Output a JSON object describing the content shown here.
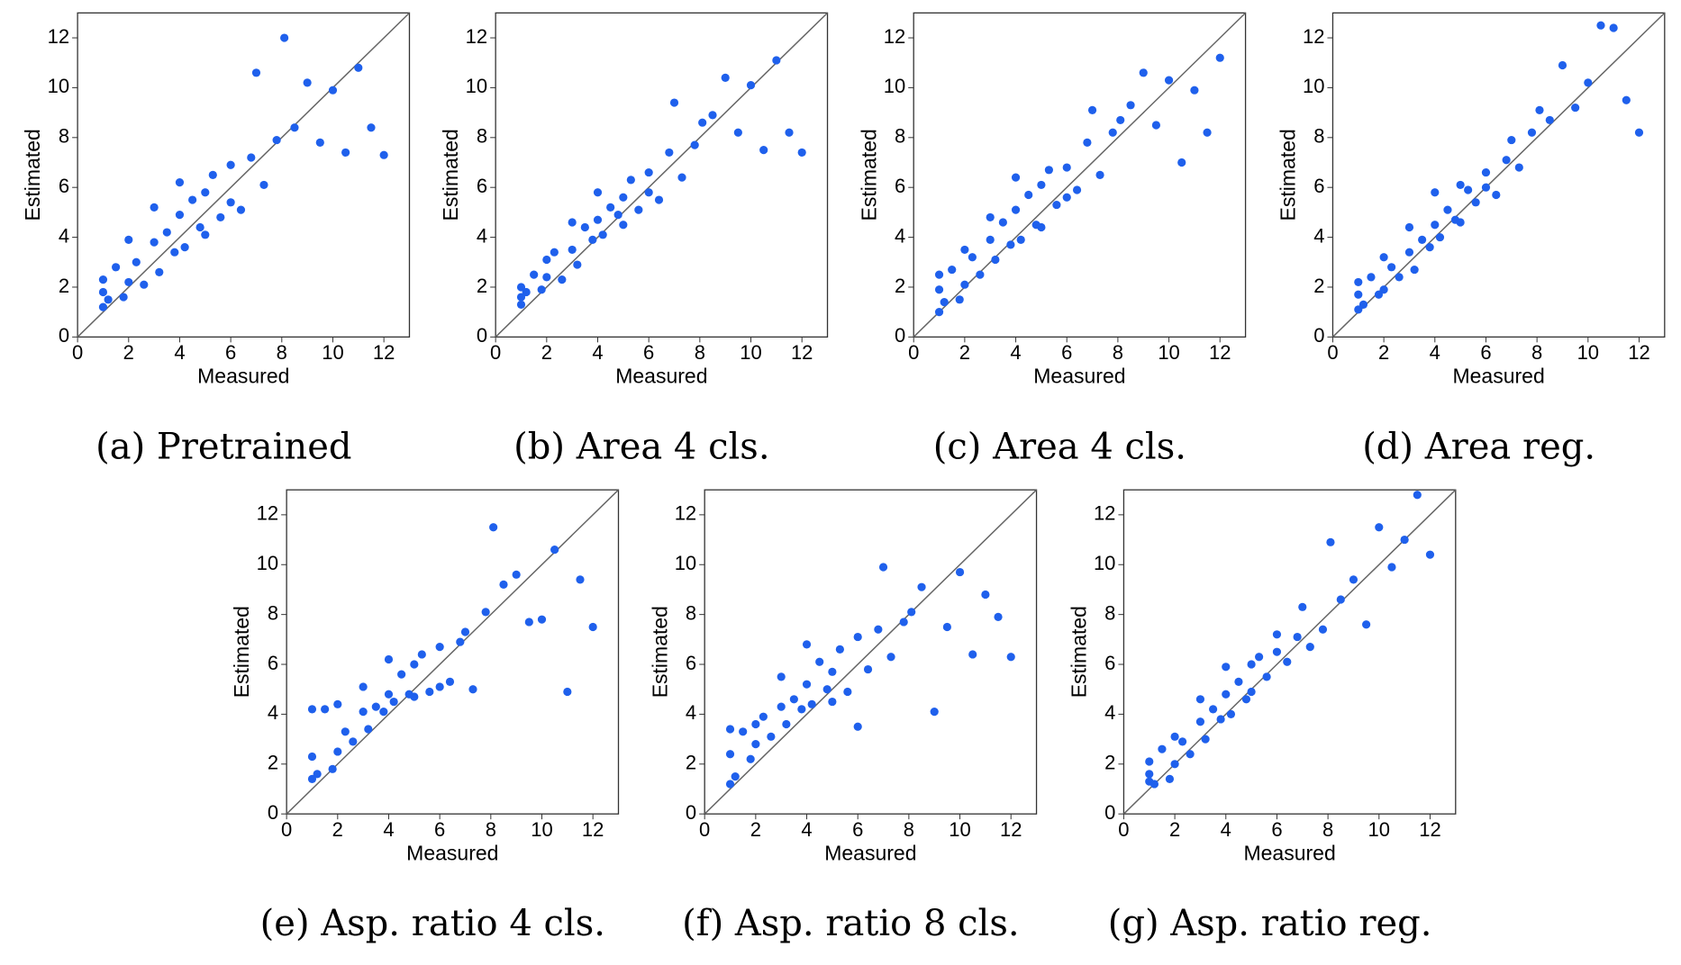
{
  "chart_data": [
    {
      "type": "scatter",
      "caption": "(a) Pretrained",
      "xlabel": "Measured",
      "ylabel": "Estimated",
      "color": "#1f60ec",
      "xlim": [
        0,
        13
      ],
      "ylim": [
        0,
        13
      ],
      "xticks": [
        0,
        2,
        4,
        6,
        8,
        10,
        12
      ],
      "yticks": [
        0,
        2,
        4,
        6,
        8,
        10,
        12
      ],
      "x": [
        1,
        1,
        1,
        1.2,
        1.5,
        1.8,
        2,
        2,
        2.3,
        2.6,
        3,
        3,
        3.2,
        3.5,
        3.8,
        4,
        4,
        4.2,
        4.5,
        4.8,
        5,
        5,
        5.3,
        5.6,
        6,
        6,
        6.4,
        6.8,
        7,
        7.3,
        7.8,
        8.1,
        8.5,
        9,
        9.5,
        10,
        10.5,
        11,
        11.5,
        12
      ],
      "y": [
        1.2,
        1.8,
        2.3,
        1.5,
        2.8,
        1.6,
        3.9,
        2.2,
        3,
        2.1,
        3.8,
        5.2,
        2.6,
        4.2,
        3.4,
        4.9,
        6.2,
        3.6,
        5.5,
        4.4,
        5.8,
        4.1,
        6.5,
        4.8,
        6.9,
        5.4,
        5.1,
        7.2,
        10.6,
        6.1,
        7.9,
        12,
        8.4,
        10.2,
        7.8,
        9.9,
        7.4,
        10.8,
        8.4,
        7.3
      ]
    },
    {
      "type": "scatter",
      "caption": "(b) Area 4 cls.",
      "xlabel": "Measured",
      "ylabel": "Estimated",
      "color": "#1f60ec",
      "xlim": [
        0,
        13
      ],
      "ylim": [
        0,
        13
      ],
      "xticks": [
        0,
        2,
        4,
        6,
        8,
        10,
        12
      ],
      "yticks": [
        0,
        2,
        4,
        6,
        8,
        10,
        12
      ],
      "x": [
        1,
        1,
        1,
        1.2,
        1.5,
        1.8,
        2,
        2,
        2.3,
        2.6,
        3,
        3,
        3.2,
        3.5,
        3.8,
        4,
        4,
        4.2,
        4.5,
        4.8,
        5,
        5,
        5.3,
        5.6,
        6,
        6,
        6.4,
        6.8,
        7,
        7.3,
        7.8,
        8.1,
        8.5,
        9,
        9.5,
        10,
        10.5,
        11,
        11.5,
        12
      ],
      "y": [
        1.3,
        2,
        1.6,
        1.8,
        2.5,
        1.9,
        3.1,
        2.4,
        3.4,
        2.3,
        3.5,
        4.6,
        2.9,
        4.4,
        3.9,
        4.7,
        5.8,
        4.1,
        5.2,
        4.9,
        5.6,
        4.5,
        6.3,
        5.1,
        6.6,
        5.8,
        5.5,
        7.4,
        9.4,
        6.4,
        7.7,
        8.6,
        8.9,
        10.4,
        8.2,
        10.1,
        7.5,
        11.1,
        8.2,
        7.4
      ]
    },
    {
      "type": "scatter",
      "caption": "(c) Area 4 cls.",
      "xlabel": "Measured",
      "ylabel": "Estimated",
      "color": "#1f60ec",
      "xlim": [
        0,
        13
      ],
      "ylim": [
        0,
        13
      ],
      "xticks": [
        0,
        2,
        4,
        6,
        8,
        10,
        12
      ],
      "yticks": [
        0,
        2,
        4,
        6,
        8,
        10,
        12
      ],
      "x": [
        1,
        1,
        1,
        1.2,
        1.5,
        1.8,
        2,
        2,
        2.3,
        2.6,
        3,
        3,
        3.2,
        3.5,
        3.8,
        4,
        4,
        4.2,
        4.5,
        4.8,
        5,
        5,
        5.3,
        5.6,
        6,
        6,
        6.4,
        6.8,
        7,
        7.3,
        7.8,
        8.1,
        8.5,
        9,
        9.5,
        10,
        10.5,
        11,
        11.5,
        12
      ],
      "y": [
        1,
        1.9,
        2.5,
        1.4,
        2.7,
        1.5,
        3.5,
        2.1,
        3.2,
        2.5,
        3.9,
        4.8,
        3.1,
        4.6,
        3.7,
        5.1,
        6.4,
        3.9,
        5.7,
        4.5,
        6.1,
        4.4,
        6.7,
        5.3,
        6.8,
        5.6,
        5.9,
        7.8,
        9.1,
        6.5,
        8.2,
        8.7,
        9.3,
        10.6,
        8.5,
        10.3,
        7,
        9.9,
        8.2,
        11.2
      ]
    },
    {
      "type": "scatter",
      "caption": "(d) Area reg.",
      "xlabel": "Measured",
      "ylabel": "Estimated",
      "color": "#1f60ec",
      "xlim": [
        0,
        13
      ],
      "ylim": [
        0,
        13
      ],
      "xticks": [
        0,
        2,
        4,
        6,
        8,
        10,
        12
      ],
      "yticks": [
        0,
        2,
        4,
        6,
        8,
        10,
        12
      ],
      "x": [
        1,
        1,
        1,
        1.2,
        1.5,
        1.8,
        2,
        2,
        2.3,
        2.6,
        3,
        3,
        3.2,
        3.5,
        3.8,
        4,
        4,
        4.2,
        4.5,
        4.8,
        5,
        5,
        5.3,
        5.6,
        6,
        6,
        6.4,
        6.8,
        7,
        7.3,
        7.8,
        8.1,
        8.5,
        9,
        9.5,
        10,
        10.5,
        11,
        11.5,
        12
      ],
      "y": [
        1.1,
        1.7,
        2.2,
        1.3,
        2.4,
        1.7,
        3.2,
        1.9,
        2.8,
        2.4,
        3.4,
        4.4,
        2.7,
        3.9,
        3.6,
        4.5,
        5.8,
        4,
        5.1,
        4.7,
        6.1,
        4.6,
        5.9,
        5.4,
        6.6,
        6,
        5.7,
        7.1,
        7.9,
        6.8,
        8.2,
        9.1,
        8.7,
        10.9,
        9.2,
        10.2,
        12.5,
        12.4,
        9.5,
        8.2
      ]
    },
    {
      "type": "scatter",
      "caption": "(e) Asp. ratio 4 cls.",
      "xlabel": "Measured",
      "ylabel": "Estimated",
      "color": "#1f60ec",
      "xlim": [
        0,
        13
      ],
      "ylim": [
        0,
        13
      ],
      "xticks": [
        0,
        2,
        4,
        6,
        8,
        10,
        12
      ],
      "yticks": [
        0,
        2,
        4,
        6,
        8,
        10,
        12
      ],
      "x": [
        1,
        1,
        1,
        1.2,
        1.5,
        1.8,
        2,
        2,
        2.3,
        2.6,
        3,
        3,
        3.2,
        3.5,
        3.8,
        4,
        4,
        4.2,
        4.5,
        4.8,
        5,
        5,
        5.3,
        5.6,
        6,
        6,
        6.4,
        6.8,
        7,
        7.3,
        7.8,
        8.1,
        8.5,
        9,
        9.5,
        10,
        10.5,
        11,
        11.5,
        12
      ],
      "y": [
        1.4,
        2.3,
        4.2,
        1.6,
        4.2,
        1.8,
        4.4,
        2.5,
        3.3,
        2.9,
        4.1,
        5.1,
        3.4,
        4.3,
        4.1,
        4.8,
        6.2,
        4.5,
        5.6,
        4.8,
        6,
        4.7,
        6.4,
        4.9,
        6.7,
        5.1,
        5.3,
        6.9,
        7.3,
        5,
        8.1,
        11.5,
        9.2,
        9.6,
        7.7,
        7.8,
        10.6,
        4.9,
        9.4,
        7.5
      ]
    },
    {
      "type": "scatter",
      "caption": "(f) Asp. ratio 8 cls.",
      "xlabel": "Measured",
      "ylabel": "Estimated",
      "color": "#1f60ec",
      "xlim": [
        0,
        13
      ],
      "ylim": [
        0,
        13
      ],
      "xticks": [
        0,
        2,
        4,
        6,
        8,
        10,
        12
      ],
      "yticks": [
        0,
        2,
        4,
        6,
        8,
        10,
        12
      ],
      "x": [
        1,
        1,
        1,
        1.2,
        1.5,
        1.8,
        2,
        2,
        2.3,
        2.6,
        3,
        3,
        3.2,
        3.5,
        3.8,
        4,
        4,
        4.2,
        4.5,
        4.8,
        5,
        5,
        5.3,
        5.6,
        6,
        6,
        6.4,
        6.8,
        7,
        7.3,
        7.8,
        8.1,
        8.5,
        9,
        9.5,
        10,
        10.5,
        11,
        11.5,
        12
      ],
      "y": [
        1.2,
        2.4,
        3.4,
        1.5,
        3.3,
        2.2,
        3.6,
        2.8,
        3.9,
        3.1,
        4.3,
        5.5,
        3.6,
        4.6,
        4.2,
        5.2,
        6.8,
        4.4,
        6.1,
        5,
        5.7,
        4.5,
        6.6,
        4.9,
        7.1,
        3.5,
        5.8,
        7.4,
        9.9,
        6.3,
        7.7,
        8.1,
        9.1,
        4.1,
        7.5,
        9.7,
        6.4,
        8.8,
        7.9,
        6.3
      ]
    },
    {
      "type": "scatter",
      "caption": "(g) Asp. ratio reg.",
      "xlabel": "Measured",
      "ylabel": "Estimated",
      "color": "#1f60ec",
      "xlim": [
        0,
        13
      ],
      "ylim": [
        0,
        13
      ],
      "xticks": [
        0,
        2,
        4,
        6,
        8,
        10,
        12
      ],
      "yticks": [
        0,
        2,
        4,
        6,
        8,
        10,
        12
      ],
      "x": [
        1,
        1,
        1,
        1.2,
        1.5,
        1.8,
        2,
        2,
        2.3,
        2.6,
        3,
        3,
        3.2,
        3.5,
        3.8,
        4,
        4,
        4.2,
        4.5,
        4.8,
        5,
        5,
        5.3,
        5.6,
        6,
        6,
        6.4,
        6.8,
        7,
        7.3,
        7.8,
        8.1,
        8.5,
        9,
        9.5,
        10,
        10.5,
        11,
        11.5,
        12
      ],
      "y": [
        1.3,
        1.6,
        2.1,
        1.2,
        2.6,
        1.4,
        3.1,
        2,
        2.9,
        2.4,
        3.7,
        4.6,
        3,
        4.2,
        3.8,
        4.8,
        5.9,
        4,
        5.3,
        4.6,
        6,
        4.9,
        6.3,
        5.5,
        6.5,
        7.2,
        6.1,
        7.1,
        8.3,
        6.7,
        7.4,
        10.9,
        8.6,
        9.4,
        7.6,
        11.5,
        9.9,
        11,
        12.8,
        10.4
      ]
    }
  ]
}
